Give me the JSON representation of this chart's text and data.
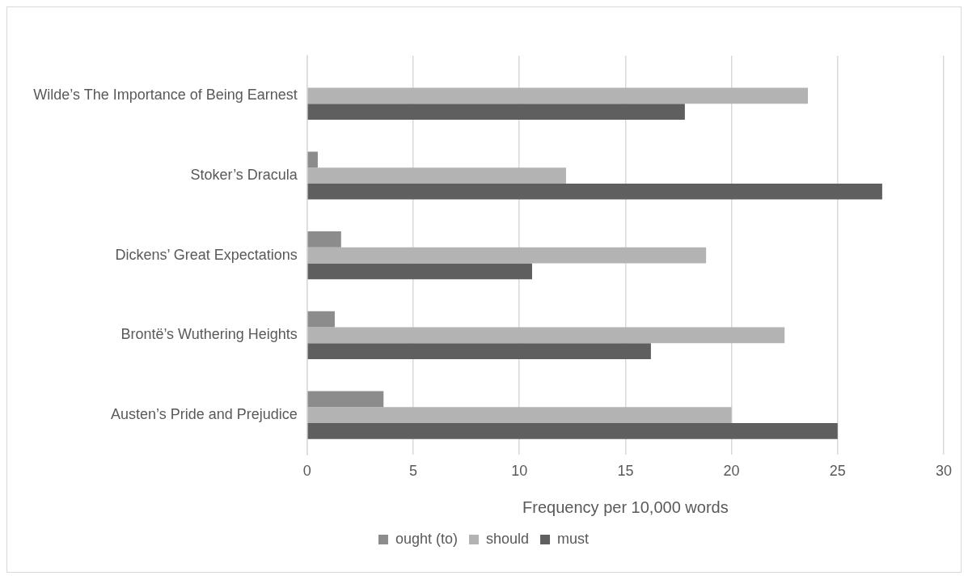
{
  "chart_data": {
    "type": "bar",
    "orientation": "horizontal",
    "xlabel": "Frequency per 10,000 words",
    "categories": [
      "Wilde’s The Importance of Being Earnest",
      "Stoker’s Dracula",
      "Dickens’ Great Expectations",
      "Brontë’s Wuthering Heights",
      "Austen’s Pride and Prejudice"
    ],
    "series": [
      {
        "name": "ought (to)",
        "color": "#8c8c8c",
        "values": [
          null,
          0.5,
          1.6,
          1.3,
          3.6
        ]
      },
      {
        "name": "should",
        "color": "#b3b3b3",
        "values": [
          23.6,
          12.2,
          18.8,
          22.5,
          20.0
        ]
      },
      {
        "name": "must",
        "color": "#5f5f5f",
        "values": [
          17.8,
          27.1,
          10.6,
          16.2,
          25.0
        ]
      }
    ],
    "xlim": [
      0,
      30
    ],
    "xticks": [
      0,
      5,
      10,
      15,
      20,
      25,
      30
    ],
    "grid": "x",
    "legend": "bottom"
  }
}
